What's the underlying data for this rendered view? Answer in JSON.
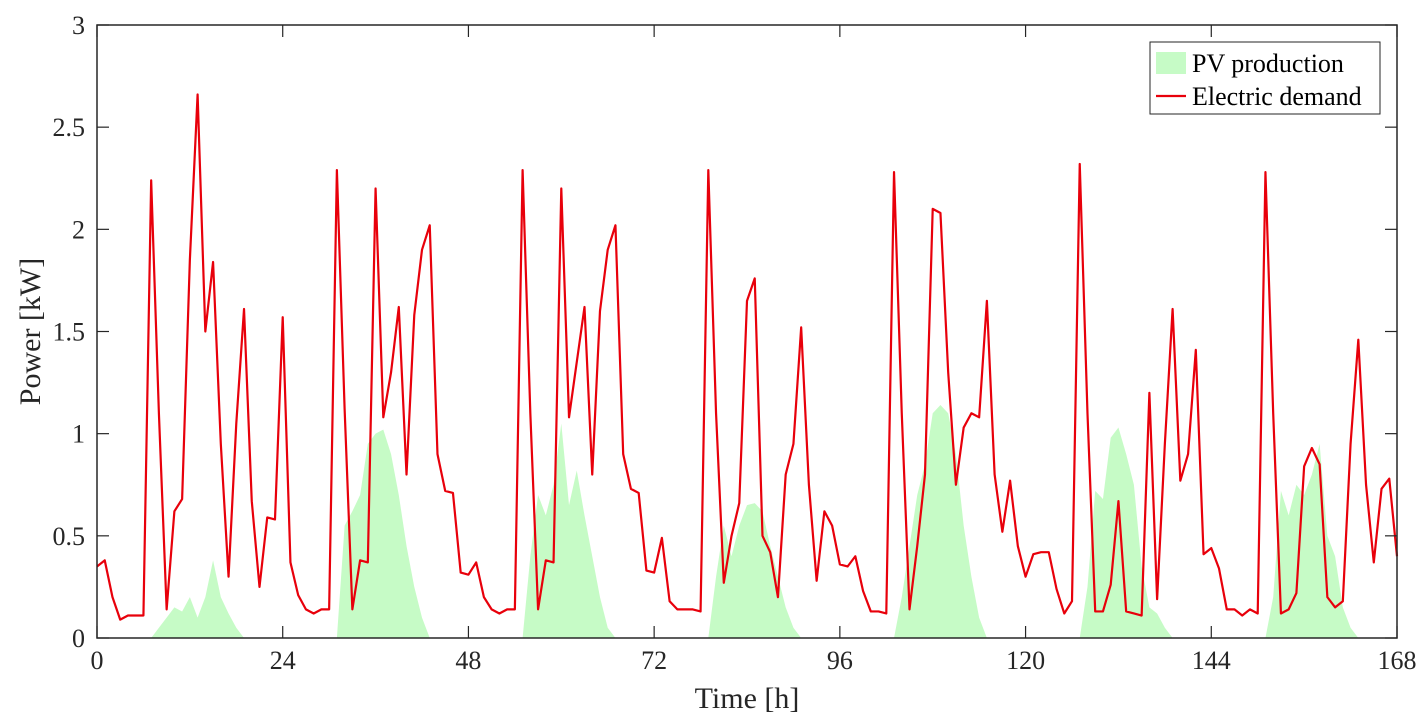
{
  "chart_data": {
    "type": "area",
    "title": "",
    "xlabel": "Time [h]",
    "ylabel": "Power [kW]",
    "xlim": [
      0,
      168
    ],
    "ylim": [
      0,
      3
    ],
    "xticks": [
      0,
      24,
      48,
      72,
      96,
      120,
      144,
      168
    ],
    "xtick_labels": [
      "0",
      "24",
      "48",
      "72",
      "96",
      "120",
      "144",
      "168"
    ],
    "yticks": [
      0,
      0.5,
      1,
      1.5,
      2,
      2.5,
      3
    ],
    "ytick_labels": [
      "0",
      "0.5",
      "1",
      "1.5",
      "2",
      "2.5",
      "3"
    ],
    "grid": false,
    "legend_position": "top-right",
    "legend": [
      "PV production",
      "Electric demand"
    ],
    "series": [
      {
        "name": "PV production",
        "type": "area",
        "color": "#c6fbc6",
        "x": [
          7,
          8,
          9,
          10,
          11,
          12,
          13,
          14,
          15,
          16,
          17,
          18,
          19,
          31,
          32,
          33,
          34,
          35,
          36,
          37,
          38,
          39,
          40,
          41,
          42,
          43,
          55,
          56,
          57,
          58,
          59,
          60,
          61,
          62,
          63,
          64,
          65,
          66,
          67,
          79,
          80,
          81,
          82,
          83,
          84,
          85,
          86,
          87,
          88,
          89,
          90,
          91,
          103,
          104,
          105,
          106,
          107,
          108,
          109,
          110,
          111,
          112,
          113,
          114,
          115,
          127,
          128,
          129,
          130,
          131,
          132,
          133,
          134,
          135,
          136,
          137,
          138,
          139,
          151,
          152,
          153,
          154,
          155,
          156,
          157,
          158,
          159,
          160,
          161,
          162,
          163
        ],
        "y": [
          0,
          0.05,
          0.1,
          0.15,
          0.13,
          0.2,
          0.1,
          0.2,
          0.38,
          0.2,
          0.12,
          0.05,
          0,
          0,
          0.55,
          0.62,
          0.7,
          0.95,
          1.0,
          1.02,
          0.9,
          0.7,
          0.45,
          0.25,
          0.1,
          0,
          0,
          0.4,
          0.7,
          0.6,
          0.75,
          1.05,
          0.65,
          0.82,
          0.6,
          0.4,
          0.2,
          0.05,
          0,
          0,
          0.3,
          0.55,
          0.4,
          0.55,
          0.65,
          0.66,
          0.62,
          0.45,
          0.3,
          0.15,
          0.05,
          0,
          0,
          0.2,
          0.45,
          0.7,
          0.85,
          1.1,
          1.14,
          1.1,
          0.9,
          0.55,
          0.3,
          0.1,
          0,
          0,
          0.25,
          0.72,
          0.68,
          0.98,
          1.03,
          0.9,
          0.75,
          0.35,
          0.15,
          0.12,
          0.05,
          0,
          0,
          0.2,
          0.72,
          0.6,
          0.75,
          0.7,
          0.8,
          0.95,
          0.5,
          0.4,
          0.15,
          0.05,
          0
        ]
      },
      {
        "name": "Electric demand",
        "type": "line",
        "color": "#e8000b",
        "x": [
          0,
          1,
          2,
          3,
          4,
          5,
          6,
          7,
          8,
          9,
          10,
          11,
          12,
          13,
          14,
          15,
          16,
          17,
          18,
          19,
          20,
          21,
          22,
          23,
          24,
          25,
          26,
          27,
          28,
          29,
          30,
          31,
          32,
          33,
          34,
          35,
          36,
          37,
          38,
          39,
          40,
          41,
          42,
          43,
          44,
          45,
          46,
          47,
          48,
          49,
          50,
          51,
          52,
          53,
          54,
          55,
          56,
          57,
          58,
          59,
          60,
          61,
          62,
          63,
          64,
          65,
          66,
          67,
          68,
          69,
          70,
          71,
          72,
          73,
          74,
          75,
          76,
          77,
          78,
          79,
          80,
          81,
          82,
          83,
          84,
          85,
          86,
          87,
          88,
          89,
          90,
          91,
          92,
          93,
          94,
          95,
          96,
          97,
          98,
          99,
          100,
          101,
          102,
          103,
          104,
          105,
          106,
          107,
          108,
          109,
          110,
          111,
          112,
          113,
          114,
          115,
          116,
          117,
          118,
          119,
          120,
          121,
          122,
          123,
          124,
          125,
          126,
          127,
          128,
          129,
          130,
          131,
          132,
          133,
          134,
          135,
          136,
          137,
          138,
          139,
          140,
          141,
          142,
          143,
          144,
          145,
          146,
          147,
          148,
          149,
          150,
          151,
          152,
          153,
          154,
          155,
          156,
          157,
          158,
          159,
          160,
          161,
          162,
          163,
          164,
          165,
          166,
          167,
          168
        ],
        "y": [
          0.35,
          0.38,
          0.2,
          0.09,
          0.11,
          0.11,
          0.11,
          2.24,
          1.1,
          0.14,
          0.62,
          0.68,
          1.85,
          2.66,
          1.5,
          1.84,
          0.95,
          0.3,
          1.05,
          1.61,
          0.67,
          0.25,
          0.59,
          0.58,
          1.57,
          0.37,
          0.21,
          0.14,
          0.12,
          0.14,
          0.14,
          2.29,
          1.12,
          0.14,
          0.38,
          0.37,
          2.2,
          1.08,
          1.3,
          1.62,
          0.8,
          1.58,
          1.9,
          2.02,
          0.9,
          0.72,
          0.71,
          0.32,
          0.31,
          0.37,
          0.2,
          0.14,
          0.12,
          0.14,
          0.14,
          2.29,
          1.1,
          0.14,
          0.38,
          0.37,
          2.2,
          1.08,
          1.35,
          1.62,
          0.8,
          1.6,
          1.9,
          2.02,
          0.9,
          0.73,
          0.71,
          0.33,
          0.32,
          0.49,
          0.18,
          0.14,
          0.14,
          0.14,
          0.13,
          2.29,
          1.1,
          0.27,
          0.5,
          0.66,
          1.65,
          1.76,
          0.5,
          0.42,
          0.2,
          0.8,
          0.95,
          1.52,
          0.75,
          0.28,
          0.62,
          0.55,
          0.36,
          0.35,
          0.4,
          0.23,
          0.13,
          0.13,
          0.12,
          2.28,
          1.1,
          0.14,
          0.45,
          0.8,
          2.1,
          2.08,
          1.3,
          0.75,
          1.03,
          1.1,
          1.08,
          1.65,
          0.8,
          0.52,
          0.77,
          0.45,
          0.3,
          0.41,
          0.42,
          0.42,
          0.24,
          0.12,
          0.18,
          2.32,
          1.1,
          0.13,
          0.13,
          0.26,
          0.67,
          0.13,
          0.12,
          0.11,
          1.2,
          0.19,
          0.95,
          1.61,
          0.77,
          0.9,
          1.41,
          0.41,
          0.44,
          0.34,
          0.14,
          0.14,
          0.11,
          0.14,
          0.12,
          2.28,
          1.1,
          0.12,
          0.14,
          0.22,
          0.84,
          0.93,
          0.85,
          0.2,
          0.15,
          0.18,
          0.95,
          1.46,
          0.75,
          0.37,
          0.73,
          0.78,
          0.4
        ]
      }
    ]
  }
}
